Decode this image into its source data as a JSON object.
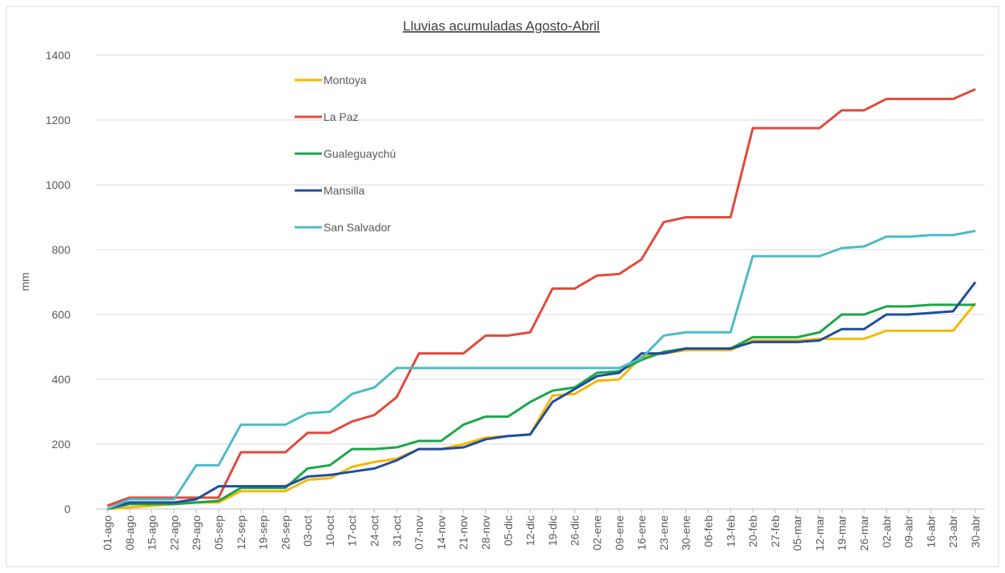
{
  "chart_data": {
    "type": "line",
    "title": "Lluvias acumuladas Agosto-Abril",
    "y_label": "mm",
    "categories": [
      "01-ago",
      "08-ago",
      "15-ago",
      "22-ago",
      "29-ago",
      "05-sep",
      "12-sep",
      "19-sep",
      "26-sep",
      "03-oct",
      "10-oct",
      "17-oct",
      "24-oct",
      "31-oct",
      "07-nov",
      "14-nov",
      "21-nov",
      "28-nov",
      "05-dic",
      "12-dic",
      "19-dic",
      "26-dic",
      "02-ene",
      "09-ene",
      "16-ene",
      "23-ene",
      "30-ene",
      "06-feb",
      "13-feb",
      "20-feb",
      "27-feb",
      "05-mar",
      "12-mar",
      "19-mar",
      "26-mar",
      "02-abr",
      "09-abr",
      "16-abr",
      "23-abr",
      "30-abr"
    ],
    "series": [
      {
        "name": "Montoya",
        "color": "#f5b800",
        "values": [
          0,
          5,
          10,
          15,
          20,
          20,
          55,
          55,
          55,
          90,
          95,
          130,
          145,
          155,
          185,
          185,
          200,
          220,
          225,
          230,
          350,
          355,
          395,
          400,
          470,
          480,
          490,
          490,
          490,
          520,
          520,
          520,
          525,
          525,
          525,
          550,
          550,
          550,
          550,
          635
        ]
      },
      {
        "name": "La Paz",
        "color": "#e04a3c",
        "values": [
          10,
          35,
          35,
          35,
          35,
          35,
          175,
          175,
          175,
          235,
          235,
          270,
          290,
          345,
          480,
          480,
          480,
          535,
          535,
          545,
          680,
          680,
          720,
          725,
          770,
          885,
          900,
          900,
          900,
          1175,
          1175,
          1175,
          1175,
          1230,
          1230,
          1265,
          1265,
          1265,
          1265,
          1295
        ]
      },
      {
        "name": "Gualeguaychú",
        "color": "#1aa64a",
        "values": [
          0,
          15,
          15,
          15,
          20,
          25,
          65,
          65,
          65,
          125,
          135,
          185,
          185,
          190,
          210,
          210,
          260,
          285,
          285,
          330,
          365,
          375,
          420,
          425,
          460,
          485,
          495,
          495,
          495,
          530,
          530,
          530,
          545,
          600,
          600,
          625,
          625,
          630,
          630,
          630
        ]
      },
      {
        "name": "Mansilla",
        "color": "#1f4e9e",
        "values": [
          0,
          20,
          20,
          20,
          30,
          70,
          70,
          70,
          70,
          100,
          105,
          115,
          125,
          150,
          185,
          185,
          190,
          215,
          225,
          230,
          330,
          370,
          410,
          420,
          480,
          480,
          495,
          495,
          495,
          515,
          515,
          515,
          520,
          555,
          555,
          600,
          600,
          605,
          610,
          700
        ]
      },
      {
        "name": "San Salvador",
        "color": "#4bbcc5",
        "values": [
          0,
          30,
          30,
          30,
          135,
          135,
          260,
          260,
          260,
          295,
          300,
          355,
          375,
          435,
          435,
          435,
          435,
          435,
          435,
          435,
          435,
          435,
          435,
          435,
          465,
          535,
          545,
          545,
          545,
          780,
          780,
          780,
          780,
          805,
          810,
          840,
          840,
          845,
          845,
          858
        ]
      }
    ],
    "ylim": [
      0,
      1400
    ],
    "yticks": [
      0,
      200,
      400,
      600,
      800,
      1000,
      1200,
      1400
    ],
    "grid": true
  }
}
